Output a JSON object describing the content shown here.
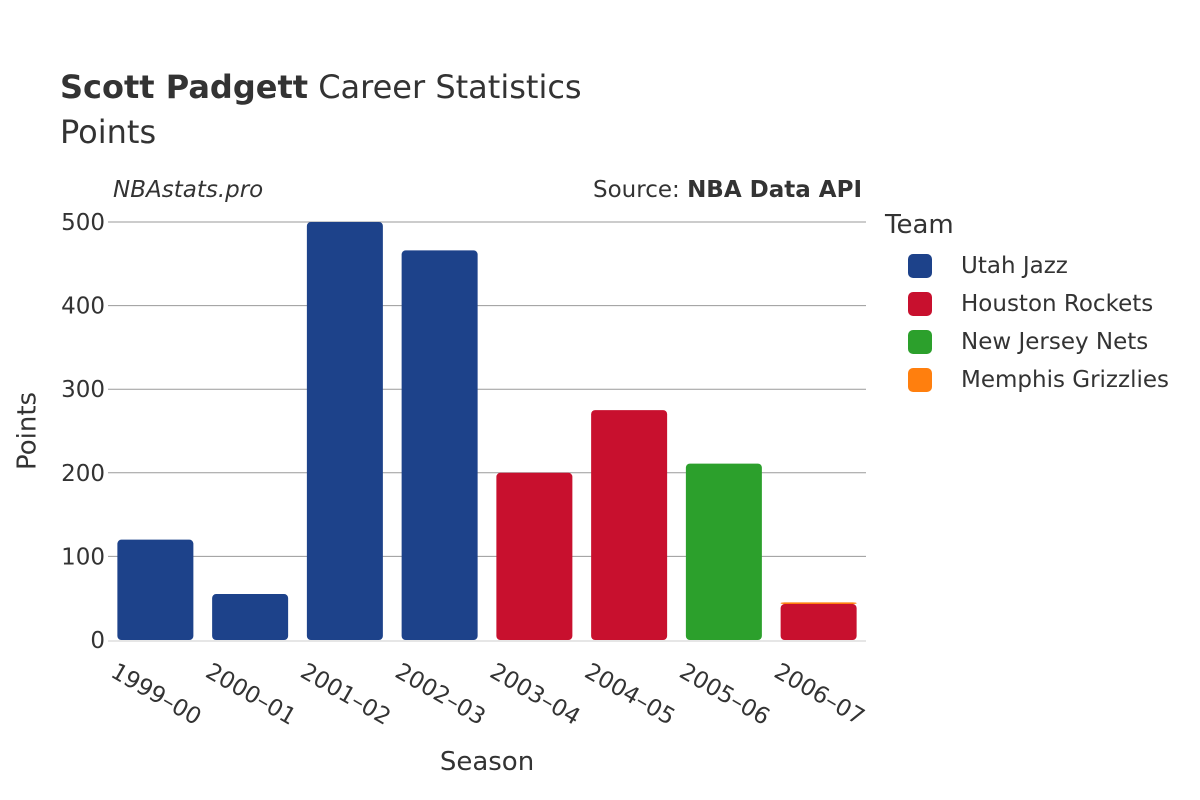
{
  "header": {
    "title_bold": "Scott Padgett",
    "title_rest": "Career Statistics",
    "subtitle": "Points"
  },
  "watermark": "NBAstats.pro",
  "source": {
    "prefix": "Source: ",
    "name": "NBA Data API"
  },
  "legend": {
    "title": "Team",
    "items": [
      {
        "label": "Utah Jazz",
        "color": "#1d428a"
      },
      {
        "label": "Houston Rockets",
        "color": "#c8102e"
      },
      {
        "label": "New Jersey Nets",
        "color": "#2ca02c"
      },
      {
        "label": "Memphis Grizzlies",
        "color": "#ff7f0e"
      }
    ]
  },
  "chart_data": {
    "type": "bar",
    "xlabel": "Season",
    "ylabel": "Points",
    "ylim": [
      0,
      500
    ],
    "yticks": [
      0,
      100,
      200,
      300,
      400,
      500
    ],
    "grid": true,
    "legend_position": "right",
    "categories": [
      "1999–00",
      "2000–01",
      "2001–02",
      "2002–03",
      "2003–04",
      "2004–05",
      "2005–06",
      "2006–07"
    ],
    "stacked": true,
    "series": [
      {
        "name": "Utah Jazz",
        "color": "#1d428a",
        "values": [
          120,
          55,
          500,
          466,
          0,
          0,
          0,
          0
        ]
      },
      {
        "name": "Houston Rockets",
        "color": "#c8102e",
        "values": [
          0,
          0,
          0,
          0,
          200,
          275,
          0,
          43
        ]
      },
      {
        "name": "New Jersey Nets",
        "color": "#2ca02c",
        "values": [
          0,
          0,
          0,
          0,
          0,
          0,
          211,
          0
        ]
      },
      {
        "name": "Memphis Grizzlies",
        "color": "#ff7f0e",
        "values": [
          0,
          0,
          0,
          0,
          0,
          0,
          0,
          2
        ]
      }
    ]
  }
}
